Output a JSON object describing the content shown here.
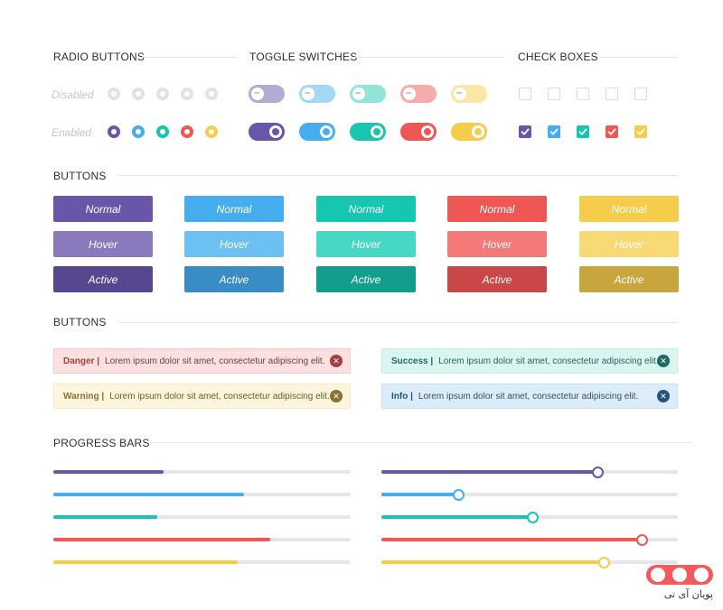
{
  "colors": {
    "purple": "#6a56a8",
    "blue": "#46adee",
    "teal": "#17c6b0",
    "red": "#ef5755",
    "yellow": "#f6cd4a"
  },
  "radio_section": {
    "title": "RADIO BUTTONS",
    "disabled_label": "Disabled",
    "enabled_label": "Enabled"
  },
  "toggle_section": {
    "title": "TOGGLE SWITCHES"
  },
  "checkbox_section": {
    "title": "CHECK BOXES"
  },
  "buttons_section": {
    "title": "BUTTONS",
    "normal_label": "Normal",
    "hover_label": "Hover",
    "active_label": "Active",
    "normal_colors": [
      "#6a56a8",
      "#46adee",
      "#17c6b0",
      "#ef5755",
      "#f6cd4a"
    ],
    "hover_colors": [
      "#8a79bd",
      "#6dc0f2",
      "#46d8c5",
      "#f47a77",
      "#f8da75"
    ],
    "active_colors": [
      "#574690",
      "#3a8cc4",
      "#129e8d",
      "#c94746",
      "#c9a53e"
    ]
  },
  "alerts_section": {
    "title": "BUTTONS",
    "alerts": [
      {
        "kind": "Danger |",
        "message": "Lorem ipsum dolor sit amet, consectetur adipiscing elit.",
        "bg": "#fde0df",
        "border": "#f9c9c8",
        "accent": "#a3403f",
        "text": "#6b3e3e"
      },
      {
        "kind": "Success |",
        "message": "Lorem ipsum dolor sit amet, consectetur adipiscing elit.",
        "bg": "#dbf6f2",
        "border": "#c4efe8",
        "accent": "#1f6b61",
        "text": "#2e5e58"
      },
      {
        "kind": "Warning |",
        "message": "Lorem ipsum dolor sit amet, consectetur adipiscing elit.",
        "bg": "#fdf5dc",
        "border": "#f8ecc3",
        "accent": "#8a7136",
        "text": "#6b5a2e"
      },
      {
        "kind": "Info |",
        "message": "Lorem ipsum dolor sit amet, consectetur adipiscing elit.",
        "bg": "#dcedf9",
        "border": "#c7e2f5",
        "accent": "#245477",
        "text": "#2f4f68"
      }
    ]
  },
  "progress_section": {
    "title": "PROGRESS BARS",
    "bars": [
      0.37,
      0.64,
      0.35,
      0.73,
      0.62
    ],
    "sliders": [
      0.73,
      0.26,
      0.51,
      0.88,
      0.75
    ]
  },
  "logo": {
    "text": "پویان آی تی"
  }
}
